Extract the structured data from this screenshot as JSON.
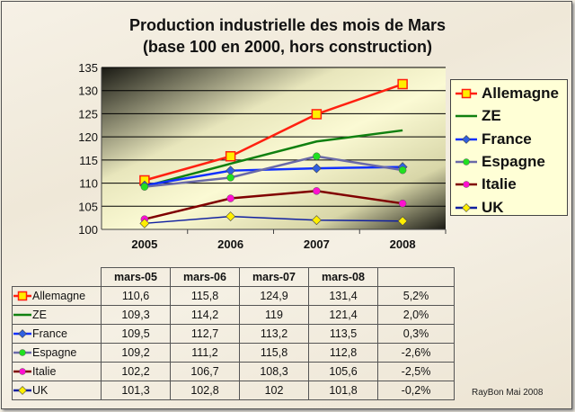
{
  "chart_data": {
    "type": "line",
    "title": "Production industrielle des mois de Mars",
    "subtitle": "(base 100 en 2000, hors construction)",
    "categories": [
      "2005",
      "2006",
      "2007",
      "2008"
    ],
    "ylim": [
      100,
      135
    ],
    "yticks": [
      100,
      105,
      110,
      115,
      120,
      125,
      130,
      135
    ],
    "grid": true,
    "legend_position": "right",
    "series": [
      {
        "name": "Allemagne",
        "values": [
          110.6,
          115.8,
          124.9,
          131.4
        ],
        "color": "#ff2010",
        "marker": "square",
        "marker_color": "#ffee00",
        "change": "5,2%"
      },
      {
        "name": "ZE",
        "values": [
          109.3,
          114.2,
          119,
          121.4
        ],
        "color": "#108010",
        "marker": "none",
        "marker_color": "#108010",
        "change": "2,0%"
      },
      {
        "name": "France",
        "values": [
          109.5,
          112.7,
          113.2,
          113.5
        ],
        "color": "#1030ff",
        "marker": "diamond",
        "marker_color": "#3060e0",
        "change": "0,3%"
      },
      {
        "name": "Espagne",
        "values": [
          109.2,
          111.2,
          115.8,
          112.8
        ],
        "color": "#6a6aa8",
        "marker": "circle",
        "marker_color": "#20e020",
        "change": "-2,6%"
      },
      {
        "name": "Italie",
        "values": [
          102.2,
          106.7,
          108.3,
          105.6
        ],
        "color": "#800000",
        "marker": "circle",
        "marker_color": "#ff10d0",
        "change": "-2,5%"
      },
      {
        "name": "UK",
        "values": [
          101.3,
          102.8,
          102,
          101.8
        ],
        "color": "#1020a0",
        "marker": "diamond",
        "marker_color": "#ffee00",
        "change": "-0,2%"
      }
    ],
    "table": {
      "headers": [
        "mars-05",
        "mars-06",
        "mars-07",
        "mars-08"
      ],
      "rows": [
        [
          "110,6",
          "115,8",
          "124,9",
          "131,4"
        ],
        [
          "109,3",
          "114,2",
          "119",
          "121,4"
        ],
        [
          "109,5",
          "112,7",
          "113,2",
          "113,5"
        ],
        [
          "109,2",
          "111,2",
          "115,8",
          "112,8"
        ],
        [
          "102,2",
          "106,7",
          "108,3",
          "105,6"
        ],
        [
          "101,3",
          "102,8",
          "102",
          "101,8"
        ]
      ]
    }
  },
  "credit": "RayBon Mai 2008"
}
